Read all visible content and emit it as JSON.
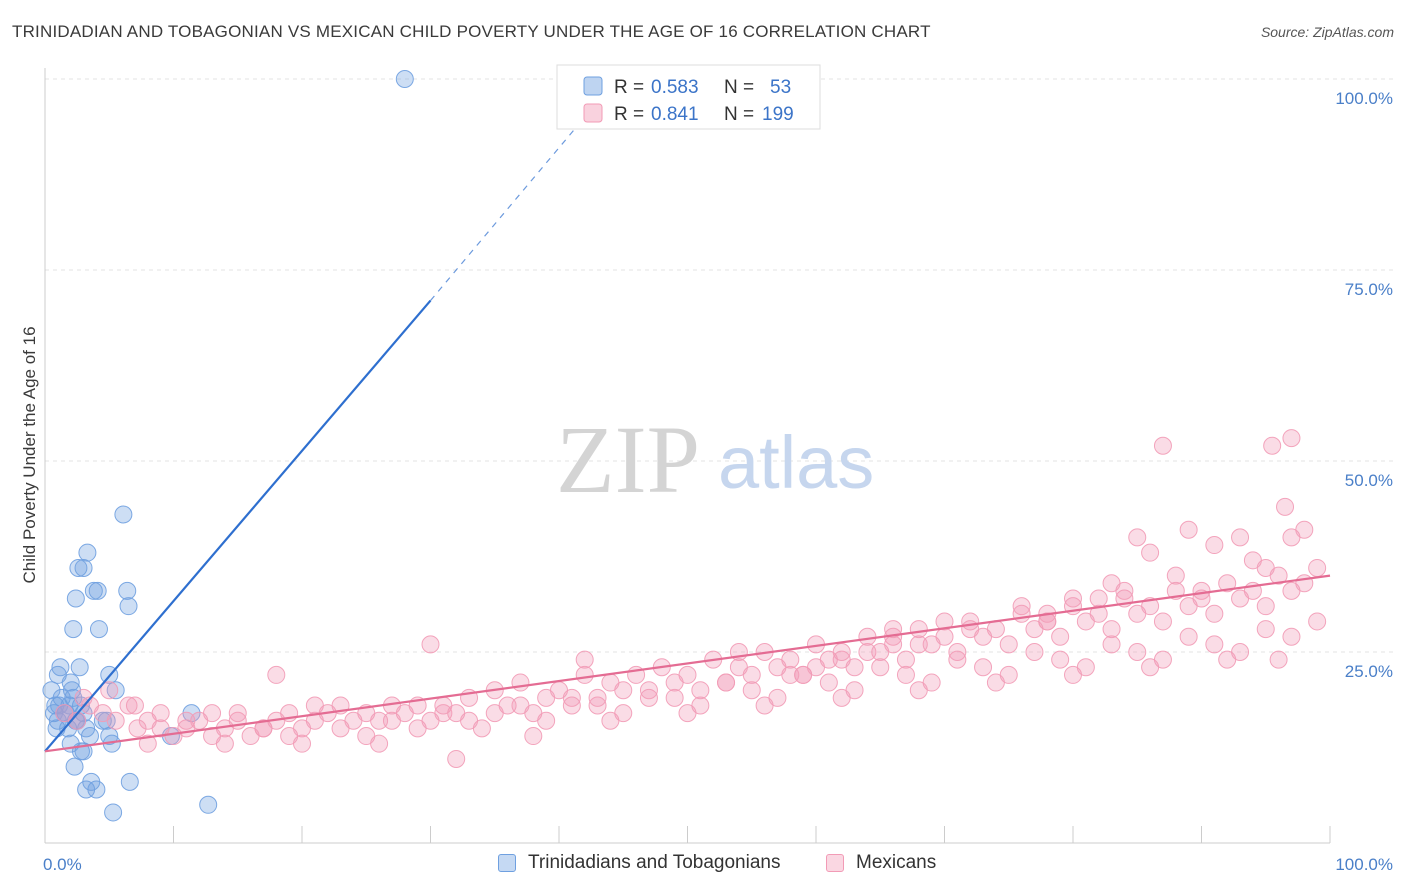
{
  "header": {
    "title": "TRINIDADIAN AND TOBAGONIAN VS MEXICAN CHILD POVERTY UNDER THE AGE OF 16 CORRELATION CHART",
    "source": "Source: ZipAtlas.com"
  },
  "watermark": {
    "zip": "ZIP",
    "atlas": "atlas"
  },
  "chart_data": {
    "type": "scatter",
    "ylabel": "Child Poverty Under the Age of 16",
    "xlim": [
      0,
      100
    ],
    "ylim": [
      0,
      100
    ],
    "x_tick_labels": [
      {
        "value": 0,
        "label": "0.0%"
      },
      {
        "value": 100,
        "label": "100.0%"
      }
    ],
    "y_tick_labels": [
      {
        "value": 25,
        "label": "25.0%"
      },
      {
        "value": 50,
        "label": "50.0%"
      },
      {
        "value": 75,
        "label": "75.0%"
      },
      {
        "value": 100,
        "label": "100.0%"
      }
    ],
    "grid": true,
    "legend_position": "top-center",
    "series": [
      {
        "name": "Trinidadians and Tobagonians",
        "color": "#6fa0e0",
        "line_color": "#2e6fcf",
        "stats": {
          "r_label": "R =",
          "r": "0.583",
          "n_label": "N =",
          "n": "53"
        },
        "trend": {
          "x0": 0,
          "y0": 12,
          "x1": 30,
          "y1": 71,
          "dash_to_x": 42,
          "dash_to_y": 95
        },
        "points": [
          [
            0.5,
            20
          ],
          [
            0.8,
            18
          ],
          [
            1.0,
            16
          ],
          [
            1.2,
            23
          ],
          [
            1.5,
            17
          ],
          [
            1.8,
            15
          ],
          [
            2.0,
            21
          ],
          [
            2.2,
            19
          ],
          [
            2.5,
            16
          ],
          [
            2.8,
            18
          ],
          [
            1.0,
            22
          ],
          [
            1.3,
            19
          ],
          [
            1.6,
            17
          ],
          [
            2.1,
            20
          ],
          [
            2.4,
            16
          ],
          [
            3.0,
            17
          ],
          [
            3.2,
            15
          ],
          [
            3.5,
            14
          ],
          [
            2.0,
            13
          ],
          [
            2.3,
            10
          ],
          [
            2.2,
            28
          ],
          [
            2.4,
            32
          ],
          [
            2.6,
            36
          ],
          [
            3.0,
            36
          ],
          [
            3.3,
            38
          ],
          [
            3.8,
            33
          ],
          [
            4.1,
            33
          ],
          [
            4.2,
            28
          ],
          [
            5.0,
            22
          ],
          [
            5.5,
            20
          ],
          [
            6.1,
            43
          ],
          [
            6.4,
            33
          ],
          [
            6.5,
            31
          ],
          [
            4.5,
            16
          ],
          [
            4.8,
            16
          ],
          [
            5.0,
            14
          ],
          [
            5.2,
            13
          ],
          [
            3.0,
            12
          ],
          [
            2.8,
            12
          ],
          [
            3.6,
            8
          ],
          [
            3.2,
            7
          ],
          [
            4.0,
            7
          ],
          [
            5.3,
            4
          ],
          [
            6.6,
            8
          ],
          [
            9.8,
            14
          ],
          [
            11.4,
            17
          ],
          [
            12.7,
            5
          ],
          [
            28.0,
            100
          ],
          [
            0.7,
            17
          ],
          [
            1.1,
            18
          ],
          [
            1.9,
            18
          ],
          [
            0.9,
            15
          ],
          [
            2.7,
            23
          ]
        ]
      },
      {
        "name": "Mexicans",
        "color": "#f29bb6",
        "line_color": "#e46c93",
        "stats": {
          "r_label": "R =",
          "r": "0.841",
          "n_label": "N =",
          "n": "199"
        },
        "trend": {
          "x0": 0,
          "y0": 12,
          "x1": 100,
          "y1": 35
        },
        "points": [
          [
            1.5,
            17
          ],
          [
            2.5,
            16
          ],
          [
            3.5,
            18
          ],
          [
            4.5,
            17
          ],
          [
            5.5,
            16
          ],
          [
            6.5,
            18
          ],
          [
            7.2,
            15
          ],
          [
            8,
            16
          ],
          [
            9,
            15
          ],
          [
            10,
            14
          ],
          [
            11,
            15
          ],
          [
            12,
            16
          ],
          [
            13,
            14
          ],
          [
            14,
            15
          ],
          [
            15,
            17
          ],
          [
            16,
            14
          ],
          [
            17,
            15
          ],
          [
            18,
            16
          ],
          [
            19,
            14
          ],
          [
            20,
            15
          ],
          [
            21,
            18
          ],
          [
            22,
            17
          ],
          [
            23,
            15
          ],
          [
            24,
            16
          ],
          [
            25,
            14
          ],
          [
            26,
            16
          ],
          [
            27,
            18
          ],
          [
            28,
            17
          ],
          [
            29,
            15
          ],
          [
            30,
            16
          ],
          [
            31,
            18
          ],
          [
            32,
            17
          ],
          [
            33,
            19
          ],
          [
            34,
            15
          ],
          [
            35,
            20
          ],
          [
            36,
            18
          ],
          [
            37,
            21
          ],
          [
            38,
            17
          ],
          [
            39,
            19
          ],
          [
            40,
            20
          ],
          [
            41,
            18
          ],
          [
            42,
            22
          ],
          [
            43,
            19
          ],
          [
            44,
            21
          ],
          [
            45,
            20
          ],
          [
            46,
            22
          ],
          [
            47,
            19
          ],
          [
            48,
            23
          ],
          [
            49,
            21
          ],
          [
            50,
            22
          ],
          [
            51,
            20
          ],
          [
            52,
            24
          ],
          [
            53,
            21
          ],
          [
            54,
            23
          ],
          [
            55,
            22
          ],
          [
            56,
            25
          ],
          [
            57,
            23
          ],
          [
            58,
            24
          ],
          [
            59,
            22
          ],
          [
            60,
            26
          ],
          [
            61,
            24
          ],
          [
            62,
            25
          ],
          [
            63,
            23
          ],
          [
            64,
            27
          ],
          [
            65,
            25
          ],
          [
            66,
            26
          ],
          [
            67,
            24
          ],
          [
            68,
            28
          ],
          [
            69,
            26
          ],
          [
            70,
            27
          ],
          [
            71,
            25
          ],
          [
            72,
            29
          ],
          [
            73,
            27
          ],
          [
            74,
            28
          ],
          [
            75,
            26
          ],
          [
            76,
            30
          ],
          [
            77,
            28
          ],
          [
            78,
            29
          ],
          [
            79,
            27
          ],
          [
            80,
            31
          ],
          [
            81,
            29
          ],
          [
            82,
            30
          ],
          [
            83,
            28
          ],
          [
            84,
            32
          ],
          [
            85,
            30
          ],
          [
            86,
            31
          ],
          [
            87,
            29
          ],
          [
            88,
            33
          ],
          [
            89,
            31
          ],
          [
            90,
            32
          ],
          [
            91,
            30
          ],
          [
            92,
            34
          ],
          [
            93,
            32
          ],
          [
            94,
            33
          ],
          [
            95,
            31
          ],
          [
            96,
            35
          ],
          [
            97,
            33
          ],
          [
            98,
            34
          ],
          [
            99,
            36
          ],
          [
            3,
            19
          ],
          [
            5,
            20
          ],
          [
            7,
            18
          ],
          [
            9,
            17
          ],
          [
            11,
            16
          ],
          [
            13,
            17
          ],
          [
            15,
            16
          ],
          [
            17,
            15
          ],
          [
            19,
            17
          ],
          [
            21,
            16
          ],
          [
            23,
            18
          ],
          [
            25,
            17
          ],
          [
            27,
            16
          ],
          [
            29,
            18
          ],
          [
            31,
            17
          ],
          [
            33,
            16
          ],
          [
            35,
            17
          ],
          [
            37,
            18
          ],
          [
            39,
            16
          ],
          [
            41,
            19
          ],
          [
            43,
            18
          ],
          [
            45,
            17
          ],
          [
            47,
            20
          ],
          [
            49,
            19
          ],
          [
            51,
            18
          ],
          [
            53,
            21
          ],
          [
            55,
            20
          ],
          [
            57,
            19
          ],
          [
            59,
            22
          ],
          [
            61,
            21
          ],
          [
            63,
            20
          ],
          [
            65,
            23
          ],
          [
            67,
            22
          ],
          [
            69,
            21
          ],
          [
            71,
            24
          ],
          [
            73,
            23
          ],
          [
            75,
            22
          ],
          [
            77,
            25
          ],
          [
            79,
            24
          ],
          [
            81,
            23
          ],
          [
            83,
            26
          ],
          [
            85,
            25
          ],
          [
            87,
            24
          ],
          [
            89,
            27
          ],
          [
            91,
            26
          ],
          [
            93,
            25
          ],
          [
            95,
            28
          ],
          [
            97,
            27
          ],
          [
            99,
            29
          ],
          [
            8,
            13
          ],
          [
            14,
            13
          ],
          [
            20,
            13
          ],
          [
            26,
            13
          ],
          [
            32,
            11
          ],
          [
            38,
            14
          ],
          [
            44,
            16
          ],
          [
            50,
            17
          ],
          [
            56,
            18
          ],
          [
            62,
            19
          ],
          [
            68,
            20
          ],
          [
            74,
            21
          ],
          [
            80,
            22
          ],
          [
            86,
            23
          ],
          [
            92,
            24
          ],
          [
            96,
            24
          ],
          [
            18,
            22
          ],
          [
            30,
            26
          ],
          [
            42,
            24
          ],
          [
            54,
            25
          ],
          [
            66,
            28
          ],
          [
            78,
            29
          ],
          [
            90,
            33
          ],
          [
            93,
            40
          ],
          [
            95,
            36
          ],
          [
            97,
            40
          ],
          [
            98,
            41
          ],
          [
            95.5,
            52
          ],
          [
            97,
            53
          ],
          [
            85,
            40
          ],
          [
            89,
            41
          ],
          [
            86,
            38
          ],
          [
            87,
            52
          ],
          [
            96.5,
            44
          ],
          [
            88,
            35
          ],
          [
            84,
            33
          ],
          [
            91,
            39
          ],
          [
            94,
            37
          ],
          [
            83,
            34
          ],
          [
            82,
            32
          ],
          [
            80,
            32
          ],
          [
            78,
            30
          ],
          [
            76,
            31
          ],
          [
            72,
            28
          ],
          [
            70,
            29
          ],
          [
            68,
            26
          ],
          [
            66,
            27
          ],
          [
            64,
            25
          ],
          [
            62,
            24
          ],
          [
            60,
            23
          ],
          [
            58,
            22
          ]
        ]
      }
    ]
  }
}
